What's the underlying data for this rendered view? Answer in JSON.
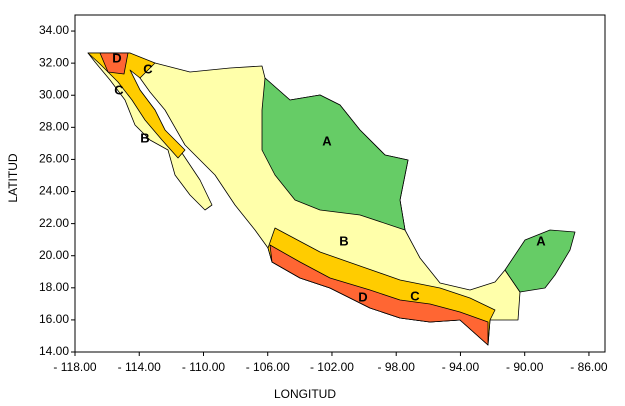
{
  "chart_data": {
    "type": "map",
    "xlabel": "LONGITUD",
    "ylabel": "LATITUD",
    "xlim": [
      -118,
      -85
    ],
    "ylim": [
      14,
      35
    ],
    "xticks": [
      {
        "value": -118,
        "label": "- 118.00"
      },
      {
        "value": -114,
        "label": "- 114.00"
      },
      {
        "value": -110,
        "label": "- 110.00"
      },
      {
        "value": -106,
        "label": "- 106.00"
      },
      {
        "value": -102,
        "label": "- 102.00"
      },
      {
        "value": -98,
        "label": "- 98.00"
      },
      {
        "value": -94,
        "label": "- 94.00"
      },
      {
        "value": -90,
        "label": "- 90.00"
      },
      {
        "value": -86,
        "label": "- 86.00"
      }
    ],
    "yticks": [
      {
        "value": 14,
        "label": "14.00"
      },
      {
        "value": 16,
        "label": "16.00"
      },
      {
        "value": 18,
        "label": "18.00"
      },
      {
        "value": 20,
        "label": "20.00"
      },
      {
        "value": 22,
        "label": "22.00"
      },
      {
        "value": 24,
        "label": "24.00"
      },
      {
        "value": 26,
        "label": "26.00"
      },
      {
        "value": 28,
        "label": "28.00"
      },
      {
        "value": 30,
        "label": "30.00"
      },
      {
        "value": 32,
        "label": "32.00"
      },
      {
        "value": 34,
        "label": "34.00"
      }
    ],
    "region_labels": [
      "A",
      "A",
      "B",
      "B",
      "C",
      "C",
      "C",
      "D",
      "D"
    ]
  }
}
